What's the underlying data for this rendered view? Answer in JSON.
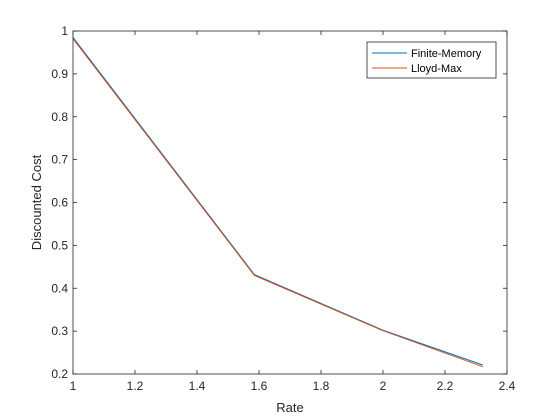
{
  "chart_data": {
    "type": "line",
    "title": "",
    "xlabel": "Rate",
    "ylabel": "Discounted Cost",
    "xlim": [
      1,
      2.4
    ],
    "ylim": [
      0.2,
      1
    ],
    "xticks": [
      1,
      1.2,
      1.4,
      1.6,
      1.8,
      2,
      2.2,
      2.4
    ],
    "yticks": [
      0.2,
      0.3,
      0.4,
      0.5,
      0.6,
      0.7,
      0.8,
      0.9,
      1
    ],
    "xtick_labels": [
      "1",
      "1.2",
      "1.4",
      "1.6",
      "1.8",
      "2",
      "2.2",
      "2.4"
    ],
    "ytick_labels": [
      "0.2",
      "0.3",
      "0.4",
      "0.5",
      "0.6",
      "0.7",
      "0.8",
      "0.9",
      "1"
    ],
    "grid": false,
    "legend_position": "top-right",
    "series": [
      {
        "name": "Finite-Memory",
        "color": "#0072BD",
        "x": [
          1,
          1.585,
          2.0,
          2.322
        ],
        "y": [
          0.985,
          0.432,
          0.302,
          0.221
        ]
      },
      {
        "name": "Lloyd-Max",
        "color": "#D95319",
        "x": [
          1,
          1.585,
          2.0,
          2.322
        ],
        "y": [
          0.982,
          0.43,
          0.301,
          0.217
        ]
      }
    ]
  }
}
